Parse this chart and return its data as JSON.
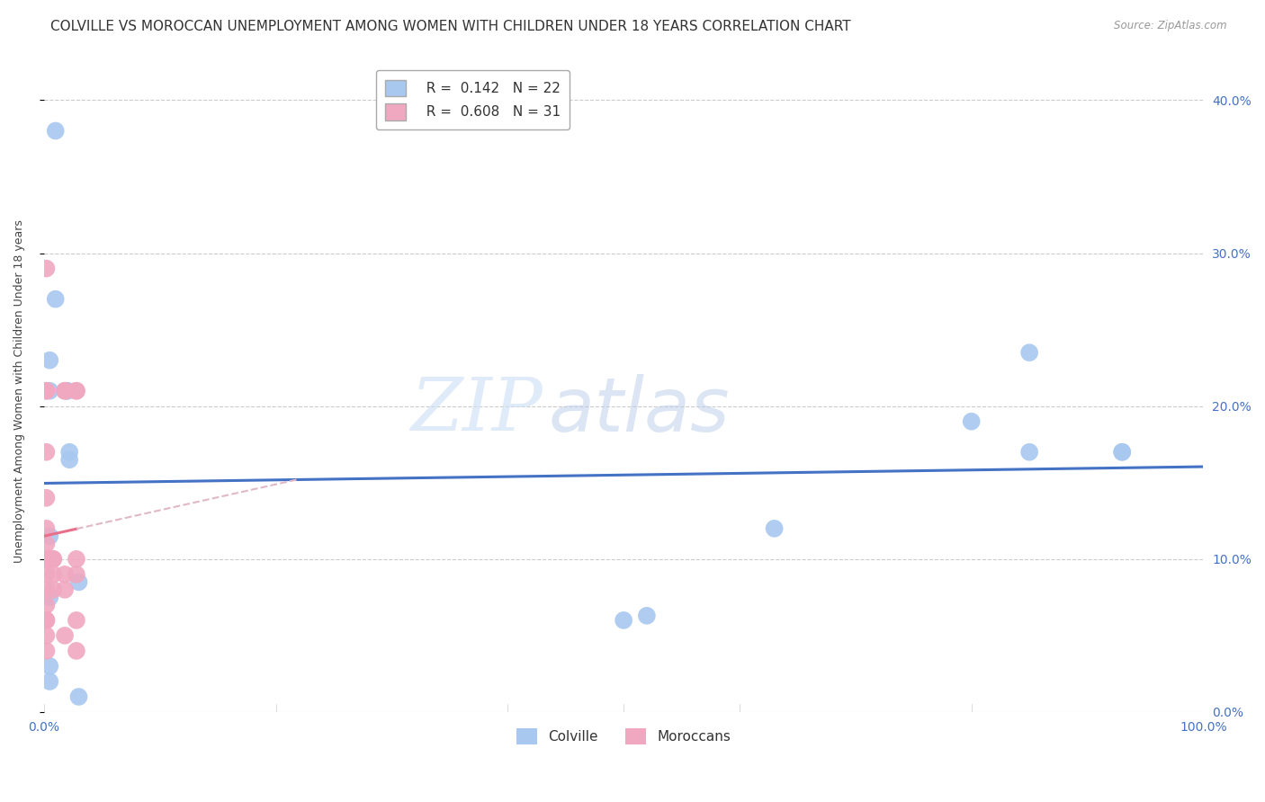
{
  "title": "COLVILLE VS MOROCCAN UNEMPLOYMENT AMONG WOMEN WITH CHILDREN UNDER 18 YEARS CORRELATION CHART",
  "source": "Source: ZipAtlas.com",
  "ylabel": "Unemployment Among Women with Children Under 18 years",
  "watermark_zip": "ZIP",
  "watermark_atlas": "atlas",
  "xlim": [
    0.0,
    1.0
  ],
  "ylim": [
    0.0,
    0.42
  ],
  "yticks": [
    0.0,
    0.1,
    0.2,
    0.3,
    0.4
  ],
  "xtick_labels_show": [
    0.0,
    1.0
  ],
  "xtick_minor": [
    0.0,
    0.2,
    0.4,
    0.5,
    0.6,
    0.8,
    1.0
  ],
  "colville_R": 0.142,
  "colville_N": 22,
  "moroccan_R": 0.608,
  "moroccan_N": 31,
  "colville_color": "#a8c8f0",
  "moroccan_color": "#f0a8c0",
  "colville_line_color": "#4472c4",
  "moroccan_line_color": "#e8708a",
  "ref_line_color": "#e0b8c8",
  "colville_x": [
    0.01,
    0.01,
    0.005,
    0.005,
    0.005,
    0.02,
    0.02,
    0.022,
    0.022,
    0.005,
    0.005,
    0.005,
    0.03,
    0.03,
    0.5,
    0.52,
    0.63,
    0.8,
    0.85,
    0.85,
    0.93,
    0.93
  ],
  "colville_y": [
    0.38,
    0.27,
    0.23,
    0.21,
    0.115,
    0.21,
    0.21,
    0.17,
    0.165,
    0.075,
    0.03,
    0.02,
    0.085,
    0.01,
    0.06,
    0.063,
    0.12,
    0.19,
    0.17,
    0.235,
    0.17,
    0.17
  ],
  "moroccan_x": [
    0.002,
    0.002,
    0.002,
    0.002,
    0.002,
    0.002,
    0.002,
    0.002,
    0.002,
    0.002,
    0.002,
    0.002,
    0.002,
    0.002,
    0.002,
    0.002,
    0.008,
    0.008,
    0.008,
    0.008,
    0.018,
    0.018,
    0.018,
    0.018,
    0.018,
    0.028,
    0.028,
    0.028,
    0.028,
    0.028,
    0.028
  ],
  "moroccan_y": [
    0.29,
    0.21,
    0.21,
    0.17,
    0.14,
    0.12,
    0.11,
    0.1,
    0.1,
    0.09,
    0.08,
    0.07,
    0.06,
    0.06,
    0.05,
    0.04,
    0.1,
    0.1,
    0.09,
    0.08,
    0.21,
    0.21,
    0.09,
    0.08,
    0.05,
    0.21,
    0.21,
    0.1,
    0.09,
    0.06,
    0.04
  ],
  "bg_color": "#ffffff",
  "grid_color": "#cccccc",
  "title_fontsize": 11,
  "label_fontsize": 9,
  "tick_fontsize": 10,
  "legend_fontsize": 11
}
